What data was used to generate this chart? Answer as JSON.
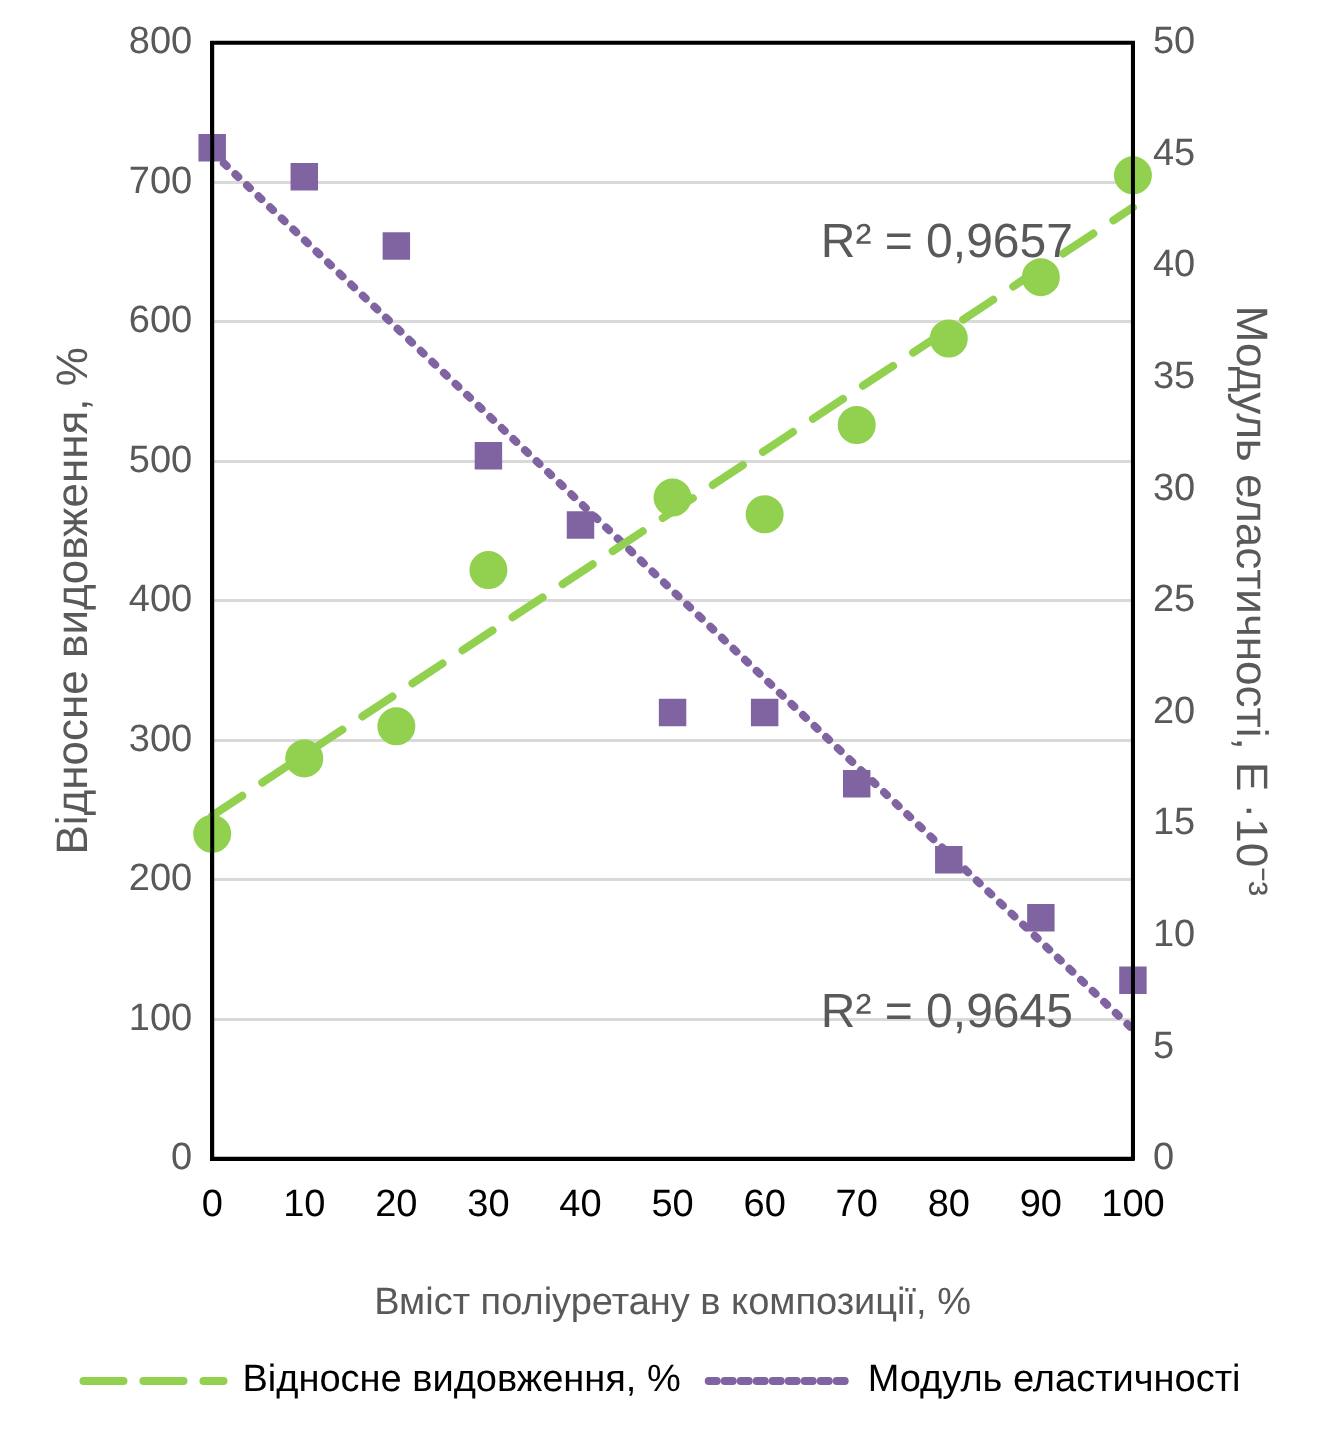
{
  "chart_data": {
    "type": "scatter",
    "xlabel": "Вміст поліуретану в композиції, %",
    "ylabel": "Відносне видовження, %",
    "y2label": "Модуль еластичності, E ·10⁻³",
    "categories": [
      "0",
      "10",
      "20",
      "30",
      "40",
      "50",
      "60",
      "70",
      "80",
      "90",
      "100"
    ],
    "ylim": [
      0,
      800
    ],
    "yticks": [
      0,
      100,
      200,
      300,
      400,
      500,
      600,
      700,
      800
    ],
    "y2lim": [
      0,
      50
    ],
    "y2ticks": [
      0,
      5,
      10,
      15,
      20,
      25,
      30,
      35,
      40,
      45,
      50
    ],
    "grid": "y",
    "legend": "bottom",
    "series": [
      {
        "color": "#92d050",
        "marker": "circle",
        "values": [
          233,
          287,
          310,
          422,
          null,
          474,
          462,
          526,
          588,
          632,
          705
        ]
      },
      {
        "color": "#8064a2",
        "marker": "square",
        "axis": "y2",
        "values": [
          45.3,
          44.0,
          40.9,
          31.5,
          28.4,
          20.0,
          20.0,
          16.8,
          13.4,
          10.8,
          8.0
        ]
      },
      {
        "type": "line",
        "name": "Відносне видовження, %",
        "color": "#92d050",
        "marker": "none",
        "line_style": "dashed",
        "x": [
          "0",
          "100"
        ],
        "values": [
          246,
          682
        ]
      },
      {
        "type": "line",
        "name": "Модуль еластичності",
        "color": "#8064a2",
        "marker": "none",
        "line_style": "dotted",
        "axis": "y2",
        "x": [
          "0",
          "100"
        ],
        "values": [
          45.1,
          5.8
        ]
      }
    ],
    "annotations": [
      "R² = 0,9657",
      "R² = 0,9645"
    ]
  }
}
